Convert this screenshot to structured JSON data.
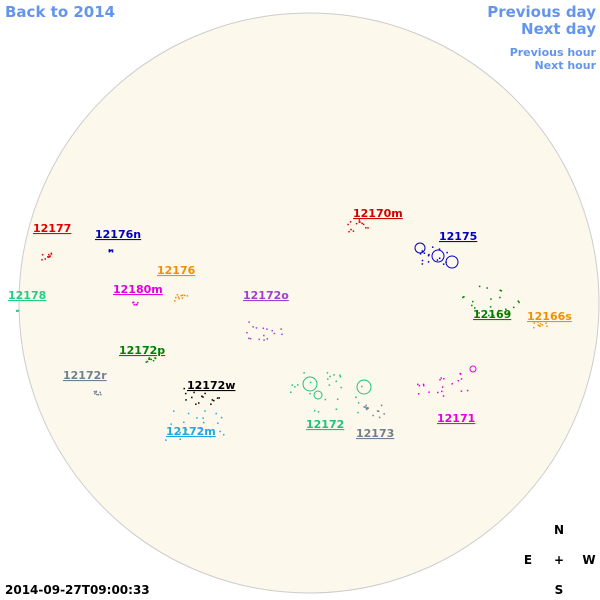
{
  "nav": {
    "back": "Back to 2014",
    "previous_day": "Previous day",
    "next_day": "Next day",
    "previous_hour": "Previous hour",
    "next_hour": "Next hour"
  },
  "timestamp": "2014-09-27T09:00:33",
  "compass": {
    "north": "N",
    "east": "E",
    "center": "+",
    "west": "W",
    "south": "S"
  },
  "regions": [
    {
      "label": "12177",
      "color": "#e00000"
    },
    {
      "label": "12176n",
      "color": "#0000c0"
    },
    {
      "label": "12170m",
      "color": "#d00000"
    },
    {
      "label": "12175",
      "color": "#0000c0"
    },
    {
      "label": "12178",
      "color": "#20d080"
    },
    {
      "label": "12180m",
      "color": "#e000e0"
    },
    {
      "label": "12176",
      "color": "#f09000"
    },
    {
      "label": "12172o",
      "color": "#a040d0"
    },
    {
      "label": "12169",
      "color": "#008000"
    },
    {
      "label": "12166s",
      "color": "#f09000"
    },
    {
      "label": "12172p",
      "color": "#008000"
    },
    {
      "label": "12172r",
      "color": "#708090"
    },
    {
      "label": "12172w",
      "color": "#000000"
    },
    {
      "label": "12172",
      "color": "#20c080"
    },
    {
      "label": "12173",
      "color": "#708090"
    },
    {
      "label": "12171",
      "color": "#e000e0"
    },
    {
      "label": "12172m",
      "color": "#20a8e0"
    }
  ]
}
